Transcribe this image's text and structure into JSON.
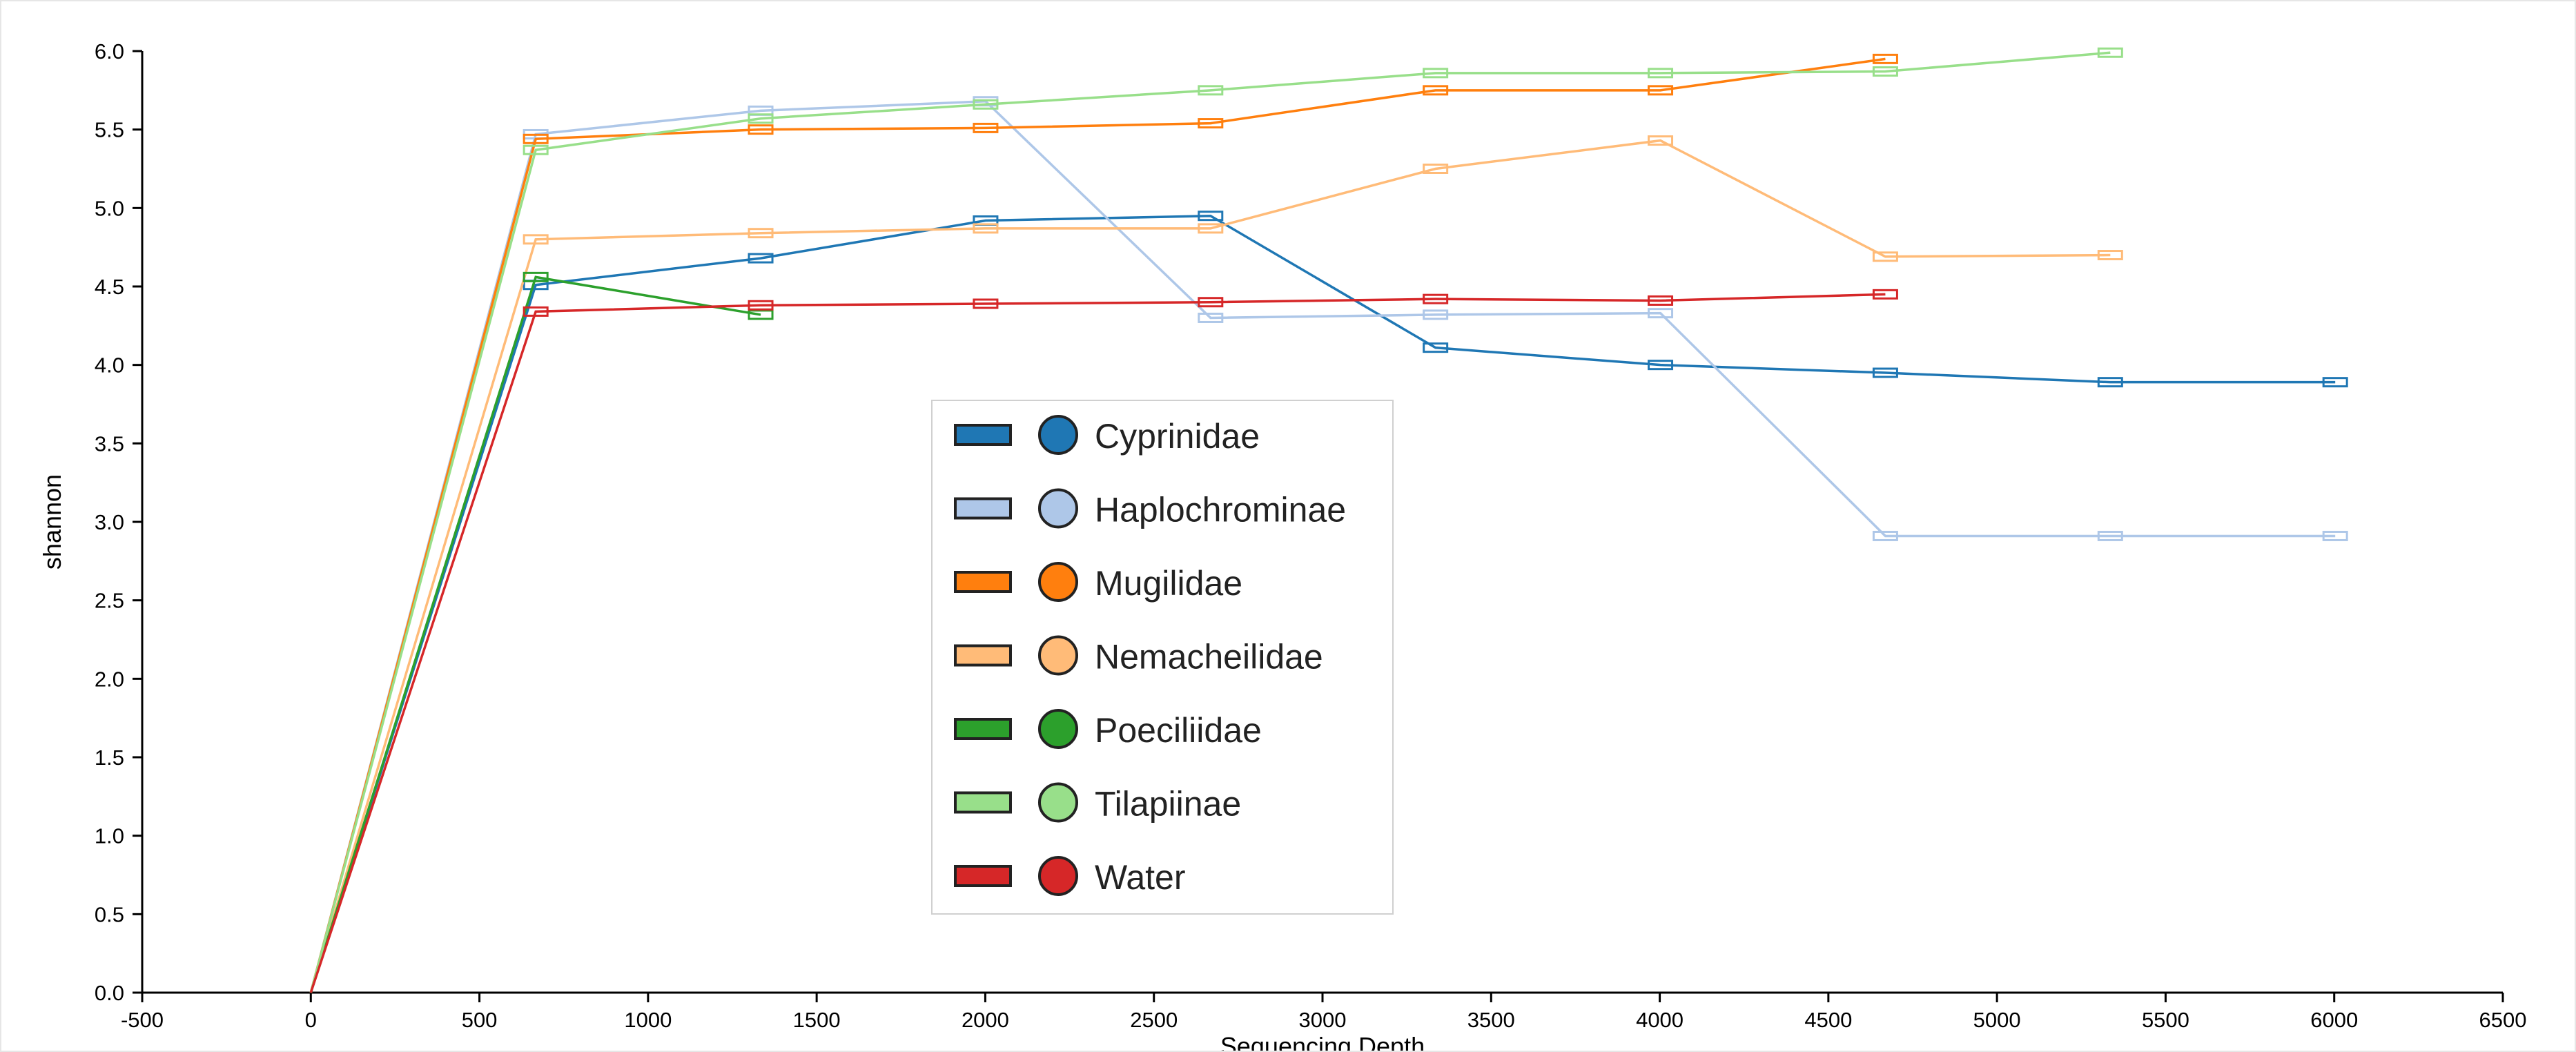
{
  "chart_data": {
    "type": "line",
    "xlabel": "Sequencing Depth",
    "ylabel": "shannon",
    "xlim": [
      -500,
      6500
    ],
    "ylim": [
      0,
      6
    ],
    "x_ticks": [
      "-500",
      "0",
      "500",
      "1000",
      "1500",
      "2000",
      "2500",
      "3000",
      "3500",
      "4000",
      "4500",
      "5000",
      "5500",
      "6000",
      "6500"
    ],
    "y_ticks": [
      "0.0",
      "0.5",
      "1.0",
      "1.5",
      "2.0",
      "2.5",
      "3.0",
      "3.5",
      "4.0",
      "4.5",
      "5.0",
      "5.5",
      "6.0"
    ],
    "legend_position": "center",
    "series": [
      {
        "name": "Cyprinidae",
        "color": "#1f77b4",
        "x": [
          0,
          667,
          1334,
          2001,
          2668,
          3335,
          4002,
          4669,
          5336,
          6003
        ],
        "y": [
          0,
          4.51,
          4.68,
          4.92,
          4.95,
          4.11,
          4.0,
          3.95,
          3.89,
          3.89
        ]
      },
      {
        "name": "Haplochrominae",
        "color": "#aec7e8",
        "x": [
          0,
          667,
          1334,
          2001,
          2668,
          3335,
          4002,
          4669,
          5336,
          6003
        ],
        "y": [
          0,
          5.47,
          5.62,
          5.68,
          4.3,
          4.32,
          4.33,
          2.91,
          2.91,
          2.91
        ]
      },
      {
        "name": "Mugilidae",
        "color": "#ff7f0e",
        "x": [
          0,
          667,
          1334,
          2001,
          2668,
          3335,
          4002,
          4669
        ],
        "y": [
          0,
          5.44,
          5.5,
          5.51,
          5.54,
          5.75,
          5.75,
          5.95
        ]
      },
      {
        "name": "Nemacheilidae",
        "color": "#ffbb78",
        "x": [
          0,
          667,
          1334,
          2001,
          2668,
          3335,
          4002,
          4669,
          5336
        ],
        "y": [
          0,
          4.8,
          4.84,
          4.87,
          4.87,
          5.25,
          5.43,
          4.69,
          4.7
        ]
      },
      {
        "name": "Poeciliidae",
        "color": "#2ca02c",
        "x": [
          0,
          667,
          1334
        ],
        "y": [
          0,
          4.56,
          4.32
        ]
      },
      {
        "name": "Tilapiinae",
        "color": "#98df8a",
        "x": [
          0,
          667,
          1334,
          2001,
          2668,
          3335,
          4002,
          4669,
          5336
        ],
        "y": [
          0,
          5.37,
          5.57,
          5.66,
          5.75,
          5.86,
          5.86,
          5.87,
          5.99
        ]
      },
      {
        "name": "Water",
        "color": "#d62728",
        "x": [
          0,
          667,
          1334,
          2001,
          2668,
          3335,
          4002,
          4669
        ],
        "y": [
          0,
          4.34,
          4.38,
          4.39,
          4.4,
          4.42,
          4.41,
          4.45
        ]
      }
    ]
  }
}
